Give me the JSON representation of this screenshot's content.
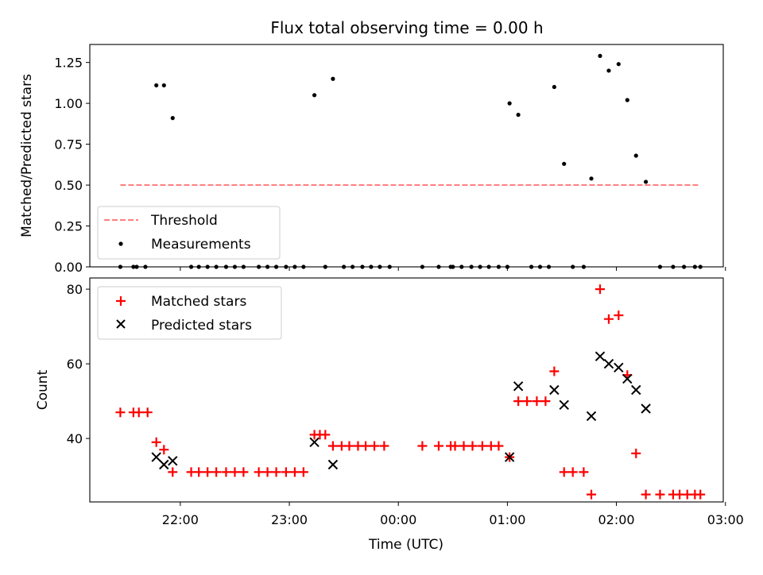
{
  "chart_data": [
    {
      "type": "scatter",
      "title": "Flux total observing time = 0.00 h",
      "ylabel": "Matched/Predicted stars",
      "ylim": [
        0,
        1.36
      ],
      "yticks": [
        0.0,
        0.25,
        0.5,
        0.75,
        1.0,
        1.25
      ],
      "ytick_labels": [
        "0.00",
        "0.25",
        "0.50",
        "0.75",
        "1.00",
        "1.25"
      ],
      "x_unit": "hours since 22:00 UTC",
      "xlim": [
        -0.83,
        4.98
      ],
      "xticks": [
        0,
        1,
        2,
        3,
        4,
        5
      ],
      "grid": false,
      "legend_position": "lower left",
      "legend": [
        "Threshold",
        "Measurements"
      ],
      "threshold": {
        "name": "Threshold",
        "value": 0.5,
        "x_range": [
          -0.55,
          4.75
        ],
        "color": "#ff7f7f"
      },
      "series": [
        {
          "name": "Measurements",
          "color": "#000000",
          "points": [
            [
              -0.55,
              0
            ],
            [
              -0.43,
              0
            ],
            [
              -0.4,
              0
            ],
            [
              -0.32,
              0
            ],
            [
              -0.22,
              1.11
            ],
            [
              -0.15,
              1.11
            ],
            [
              -0.07,
              0.91
            ],
            [
              0.1,
              0
            ],
            [
              0.17,
              0
            ],
            [
              0.25,
              0
            ],
            [
              0.33,
              0
            ],
            [
              0.42,
              0
            ],
            [
              0.5,
              0
            ],
            [
              0.58,
              0
            ],
            [
              0.72,
              0
            ],
            [
              0.8,
              0
            ],
            [
              0.88,
              0
            ],
            [
              0.97,
              0
            ],
            [
              1.05,
              0
            ],
            [
              1.13,
              0
            ],
            [
              1.23,
              1.05
            ],
            [
              1.33,
              0
            ],
            [
              1.4,
              1.15
            ],
            [
              1.5,
              0
            ],
            [
              1.58,
              0
            ],
            [
              1.67,
              0
            ],
            [
              1.75,
              0
            ],
            [
              1.83,
              0
            ],
            [
              1.92,
              0
            ],
            [
              2.22,
              0
            ],
            [
              2.37,
              0
            ],
            [
              2.48,
              0
            ],
            [
              2.5,
              0
            ],
            [
              2.58,
              0
            ],
            [
              2.67,
              0
            ],
            [
              2.75,
              0
            ],
            [
              2.83,
              0
            ],
            [
              2.92,
              0
            ],
            [
              3.0,
              0
            ],
            [
              3.02,
              1.0
            ],
            [
              3.1,
              0.93
            ],
            [
              3.22,
              0
            ],
            [
              3.3,
              0
            ],
            [
              3.38,
              0
            ],
            [
              3.43,
              1.1
            ],
            [
              3.52,
              0.63
            ],
            [
              3.6,
              0
            ],
            [
              3.7,
              0
            ],
            [
              3.77,
              0.54
            ],
            [
              3.85,
              1.29
            ],
            [
              3.93,
              1.2
            ],
            [
              4.02,
              1.24
            ],
            [
              4.1,
              1.02
            ],
            [
              4.18,
              0.68
            ],
            [
              4.27,
              0.52
            ],
            [
              4.4,
              0
            ],
            [
              4.52,
              0
            ],
            [
              4.62,
              0
            ],
            [
              4.72,
              0
            ],
            [
              4.77,
              0
            ]
          ]
        }
      ]
    },
    {
      "type": "scatter",
      "xlabel": "Time (UTC)",
      "ylabel": "Count",
      "ylim": [
        23,
        83
      ],
      "yticks": [
        40,
        60,
        80
      ],
      "ytick_labels": [
        "40",
        "60",
        "80"
      ],
      "x_unit": "hours since 22:00 UTC",
      "xlim": [
        -0.83,
        4.98
      ],
      "xticks": [
        0,
        1,
        2,
        3,
        4,
        5
      ],
      "xtick_labels": [
        "22:00",
        "23:00",
        "00:00",
        "01:00",
        "02:00",
        "03:00"
      ],
      "grid": false,
      "legend_position": "upper left",
      "legend": [
        "Matched stars",
        "Predicted stars"
      ],
      "series": [
        {
          "name": "Matched stars",
          "marker": "plus",
          "color": "#ff0000",
          "points": [
            [
              -0.55,
              47
            ],
            [
              -0.43,
              47
            ],
            [
              -0.38,
              47
            ],
            [
              -0.3,
              47
            ],
            [
              -0.22,
              39
            ],
            [
              -0.15,
              37
            ],
            [
              -0.07,
              31
            ],
            [
              0.1,
              31
            ],
            [
              0.17,
              31
            ],
            [
              0.25,
              31
            ],
            [
              0.33,
              31
            ],
            [
              0.42,
              31
            ],
            [
              0.5,
              31
            ],
            [
              0.58,
              31
            ],
            [
              0.72,
              31
            ],
            [
              0.8,
              31
            ],
            [
              0.88,
              31
            ],
            [
              0.97,
              31
            ],
            [
              1.05,
              31
            ],
            [
              1.13,
              31
            ],
            [
              1.23,
              41
            ],
            [
              1.28,
              41
            ],
            [
              1.33,
              41
            ],
            [
              1.4,
              38
            ],
            [
              1.48,
              38
            ],
            [
              1.55,
              38
            ],
            [
              1.63,
              38
            ],
            [
              1.7,
              38
            ],
            [
              1.78,
              38
            ],
            [
              1.87,
              38
            ],
            [
              2.22,
              38
            ],
            [
              2.37,
              38
            ],
            [
              2.48,
              38
            ],
            [
              2.52,
              38
            ],
            [
              2.6,
              38
            ],
            [
              2.68,
              38
            ],
            [
              2.77,
              38
            ],
            [
              2.85,
              38
            ],
            [
              2.92,
              38
            ],
            [
              3.02,
              35
            ],
            [
              3.1,
              50
            ],
            [
              3.18,
              50
            ],
            [
              3.27,
              50
            ],
            [
              3.35,
              50
            ],
            [
              3.43,
              58
            ],
            [
              3.52,
              31
            ],
            [
              3.6,
              31
            ],
            [
              3.7,
              31
            ],
            [
              3.77,
              25
            ],
            [
              3.85,
              80
            ],
            [
              3.93,
              72
            ],
            [
              4.02,
              73
            ],
            [
              4.1,
              57
            ],
            [
              4.18,
              36
            ],
            [
              4.27,
              25
            ],
            [
              4.4,
              25
            ],
            [
              4.52,
              25
            ],
            [
              4.58,
              25
            ],
            [
              4.65,
              25
            ],
            [
              4.72,
              25
            ],
            [
              4.77,
              25
            ]
          ]
        },
        {
          "name": "Predicted stars",
          "marker": "x",
          "color": "#000000",
          "points": [
            [
              -0.22,
              35
            ],
            [
              -0.15,
              33
            ],
            [
              -0.07,
              34
            ],
            [
              1.23,
              39
            ],
            [
              1.4,
              33
            ],
            [
              3.02,
              35
            ],
            [
              3.1,
              54
            ],
            [
              3.43,
              53
            ],
            [
              3.52,
              49
            ],
            [
              3.77,
              46
            ],
            [
              3.85,
              62
            ],
            [
              3.93,
              60
            ],
            [
              4.02,
              59
            ],
            [
              4.1,
              56
            ],
            [
              4.18,
              53
            ],
            [
              4.27,
              48
            ]
          ]
        }
      ]
    }
  ]
}
